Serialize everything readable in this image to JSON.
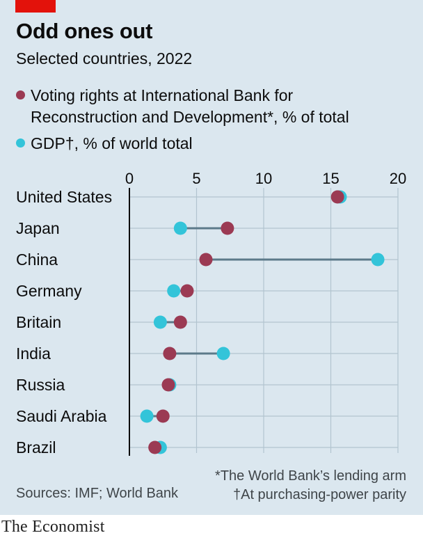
{
  "header": {
    "title": "Odd ones out",
    "subtitle": "Selected countries, 2022"
  },
  "legend": {
    "voting_line1": "Voting rights at International Bank for",
    "voting_line2": "Reconstruction and Development*,",
    "voting_unit": "% of total",
    "gdp_label": "GDP†,",
    "gdp_unit": "% of world total"
  },
  "colors": {
    "voting": "#9b3a53",
    "gdp": "#33c4d9",
    "connector": "#5c7a8a",
    "grid": "#b2c4cf",
    "axis": "#0c0c0c",
    "background": "#dbe7ef",
    "brand_tag": "#e3120b"
  },
  "chart_data": {
    "type": "dumbbell",
    "title": "Odd ones out",
    "subtitle": "Selected countries, 2022",
    "xlim": [
      0,
      20
    ],
    "xticks": [
      "0",
      "5",
      "10",
      "15",
      "20"
    ],
    "categories": [
      "United States",
      "Japan",
      "China",
      "Germany",
      "Britain",
      "India",
      "Russia",
      "Saudi Arabia",
      "Brazil"
    ],
    "series": [
      {
        "name": "Voting rights at International Bank for Reconstruction and Development*, % of total",
        "values": [
          15.5,
          7.3,
          5.7,
          4.3,
          3.8,
          3.0,
          2.9,
          2.5,
          1.9
        ]
      },
      {
        "name": "GDP†, % of world total",
        "values": [
          15.7,
          3.8,
          18.5,
          3.3,
          2.3,
          7.0,
          3.0,
          1.3,
          2.3
        ]
      }
    ]
  },
  "footer": {
    "note1": "*The World Bank’s lending arm",
    "note2": "†At purchasing-power parity",
    "source": "Sources: IMF; World Bank",
    "brand": "The Economist"
  }
}
